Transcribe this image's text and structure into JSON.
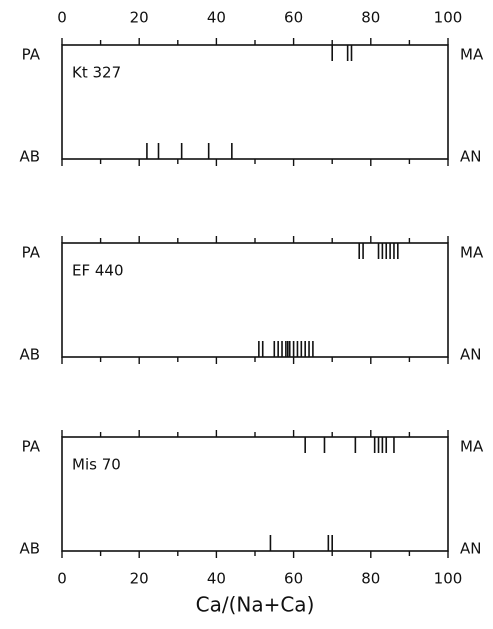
{
  "chart_data": [
    {
      "type": "rug",
      "title": "Kt 327",
      "xlim": [
        0,
        100
      ],
      "xticks": [
        0,
        20,
        40,
        60,
        80,
        100
      ],
      "minor_xticks": [
        10,
        30,
        50,
        70,
        90
      ],
      "tick_labels": "top",
      "series": [
        {
          "left_label": "PA",
          "right_label": "MA",
          "values": [
            70,
            74,
            75
          ]
        },
        {
          "left_label": "AB",
          "right_label": "AN",
          "values": [
            22,
            25,
            31,
            38,
            44
          ]
        }
      ]
    },
    {
      "type": "rug",
      "title": "EF 440",
      "xlim": [
        0,
        100
      ],
      "xticks": [
        0,
        20,
        40,
        60,
        80,
        100
      ],
      "minor_xticks": [
        10,
        30,
        50,
        70,
        90
      ],
      "tick_labels": "none",
      "series": [
        {
          "left_label": "PA",
          "right_label": "MA",
          "values": [
            77,
            78,
            82,
            83,
            84,
            85,
            86,
            87
          ]
        },
        {
          "left_label": "AB",
          "right_label": "AN",
          "values": [
            51,
            52,
            55,
            56,
            57,
            58,
            58.5,
            59,
            60,
            61,
            62,
            63,
            64,
            65
          ]
        }
      ]
    },
    {
      "type": "rug",
      "title": "Mis 70",
      "xlim": [
        0,
        100
      ],
      "xticks": [
        0,
        20,
        40,
        60,
        80,
        100
      ],
      "minor_xticks": [
        10,
        30,
        50,
        70,
        90
      ],
      "tick_labels": "bottom",
      "x_label": "Ca/(Na+Ca)",
      "series": [
        {
          "left_label": "PA",
          "right_label": "MA",
          "values": [
            63,
            68,
            76,
            81,
            82,
            83,
            84,
            86
          ]
        },
        {
          "left_label": "AB",
          "right_label": "AN",
          "values": [
            54,
            69,
            70
          ]
        }
      ]
    }
  ]
}
